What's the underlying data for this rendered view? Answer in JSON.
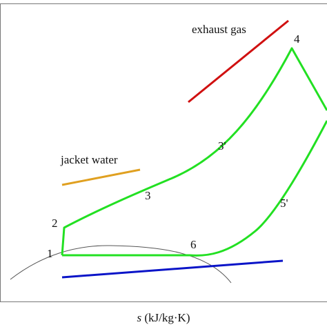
{
  "labels": {
    "exhaust": "exhaust gas",
    "jacket": "jacket water"
  },
  "points": [
    "1",
    "2",
    "3",
    "3'",
    "4",
    "5'",
    "6"
  ],
  "axis_label": {
    "symbol": "s",
    "unit": "(kJ/kg·K)"
  }
}
